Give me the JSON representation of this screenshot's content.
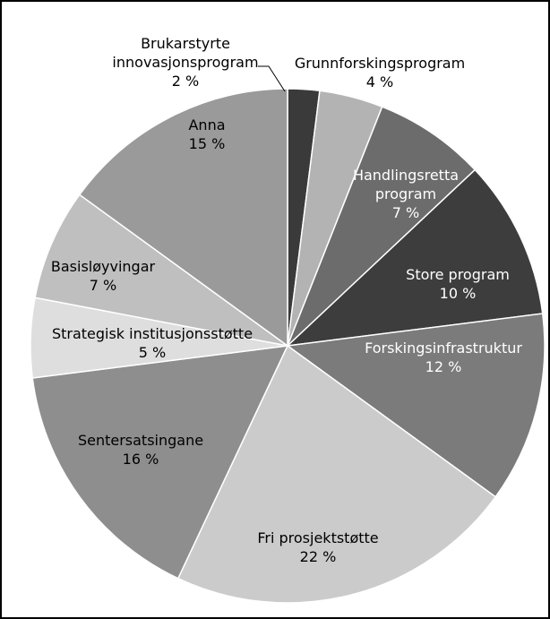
{
  "chart_data": {
    "type": "pie",
    "categories": [
      "Brukarstyrte innovasjonsprogram",
      "Grunnforskingsprogram",
      "Handlingsretta program",
      "Store program",
      "Forskingsinfrastruktur",
      "Fri prosjektstøtte",
      "Sentersatsingane",
      "Strategisk institusjonsstøtte",
      "Basisløyvingar",
      "Anna"
    ],
    "values": [
      2,
      4,
      7,
      10,
      12,
      22,
      16,
      5,
      7,
      15
    ],
    "value_labels": [
      "2 %",
      "4 %",
      "7 %",
      "10 %",
      "12 %",
      "22 %",
      "16 %",
      "5 %",
      "7 %",
      "15 %"
    ],
    "colors": [
      "#3a3a3a",
      "#b3b3b3",
      "#6c6c6c",
      "#3d3d3d",
      "#7b7b7b",
      "#cbcbcb",
      "#8e8e8e",
      "#dedede",
      "#bfbfbf",
      "#9a9a9a"
    ]
  }
}
